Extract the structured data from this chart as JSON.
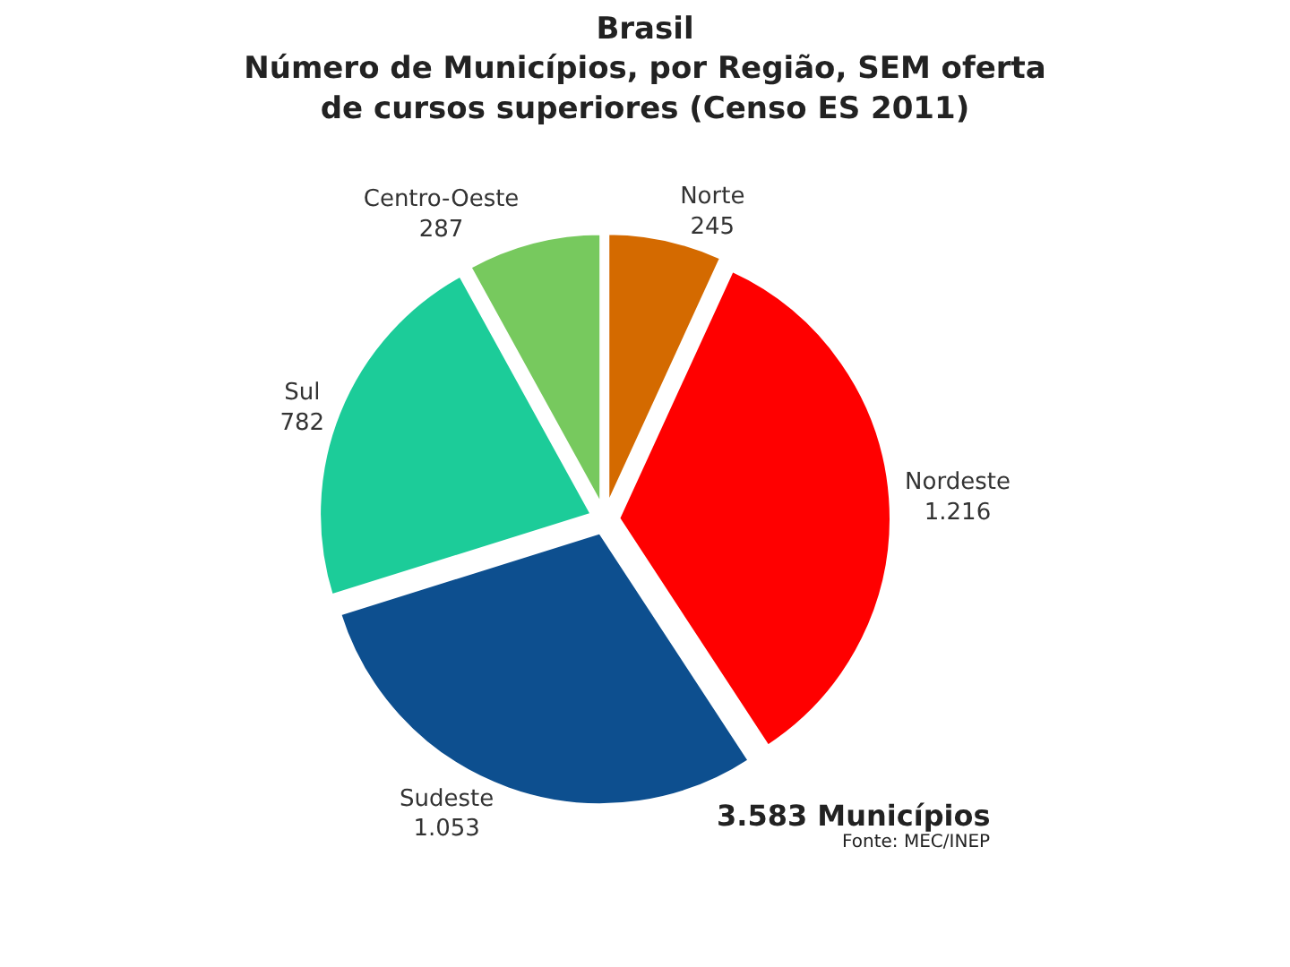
{
  "chart_data": {
    "type": "pie",
    "title": "Brasil",
    "subtitle": "Número de Municípios, por Região, SEM oferta de cursos superiores (Censo ES 2011)",
    "categories": [
      "Norte",
      "Nordeste",
      "Sudeste",
      "Sul",
      "Centro-Oeste"
    ],
    "values": [
      245,
      1216,
      1053,
      782,
      287
    ],
    "value_labels": [
      "245",
      "1.216",
      "1.053",
      "782",
      "287"
    ],
    "colors": [
      "#d46a00",
      "#ff0000",
      "#0d4f8f",
      "#1ccc99",
      "#77c95e"
    ],
    "legend": false,
    "annotations": [
      "3.583 Municípios",
      "Fonte: MEC/INEP"
    ]
  }
}
